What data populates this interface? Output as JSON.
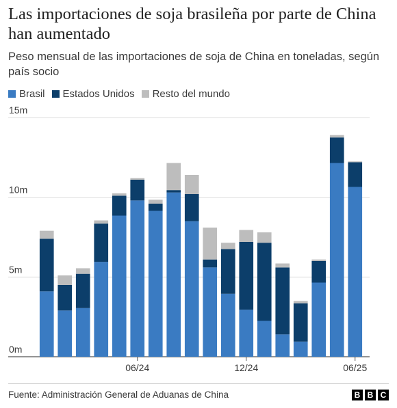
{
  "header": {
    "title": "Las importaciones de soja brasileña por parte de China han aumentado",
    "subtitle": "Peso mensual de las importaciones de soja de China en toneladas, según país socio"
  },
  "footer": {
    "source": "Fuente: Administración General de Aduanas de China",
    "logo_letters": [
      "B",
      "B",
      "C"
    ]
  },
  "chart_data": {
    "type": "bar",
    "stacked": true,
    "categories": [
      "",
      "",
      "",
      "",
      "",
      "06/24",
      "",
      "",
      "",
      "",
      "",
      "12/24",
      "",
      "",
      "",
      "",
      "",
      "06/25"
    ],
    "x_tick_labels": [
      "06/24",
      "12/24",
      "06/25"
    ],
    "y_tick_labels": [
      "0m",
      "5m",
      "10m",
      "15m"
    ],
    "ylim": [
      0,
      15000000
    ],
    "yticks": [
      0,
      5000000,
      10000000,
      15000000
    ],
    "grid": true,
    "legend_position": "top-left",
    "series": [
      {
        "name": "Brasil",
        "color": "#3a7bc2",
        "values": [
          4.1,
          2.9,
          3.05,
          5.95,
          8.85,
          9.8,
          9.15,
          10.3,
          8.5,
          5.6,
          3.95,
          2.95,
          2.25,
          1.4,
          0.95,
          4.65,
          12.15,
          10.65
        ]
      },
      {
        "name": "Estados Unidos",
        "color": "#0c3e6a",
        "values": [
          3.3,
          1.6,
          2.15,
          2.4,
          1.25,
          1.3,
          0.45,
          0.15,
          1.7,
          0.5,
          2.8,
          4.25,
          4.9,
          4.2,
          2.4,
          1.35,
          1.6,
          1.55
        ]
      },
      {
        "name": "Resto del mundo",
        "color": "#bdbdbd",
        "values": [
          0.5,
          0.6,
          0.35,
          0.2,
          0.15,
          0.1,
          0.25,
          1.7,
          1.2,
          2.0,
          0.4,
          0.75,
          0.65,
          0.25,
          0.15,
          0.1,
          0.15,
          0.05
        ]
      }
    ]
  }
}
